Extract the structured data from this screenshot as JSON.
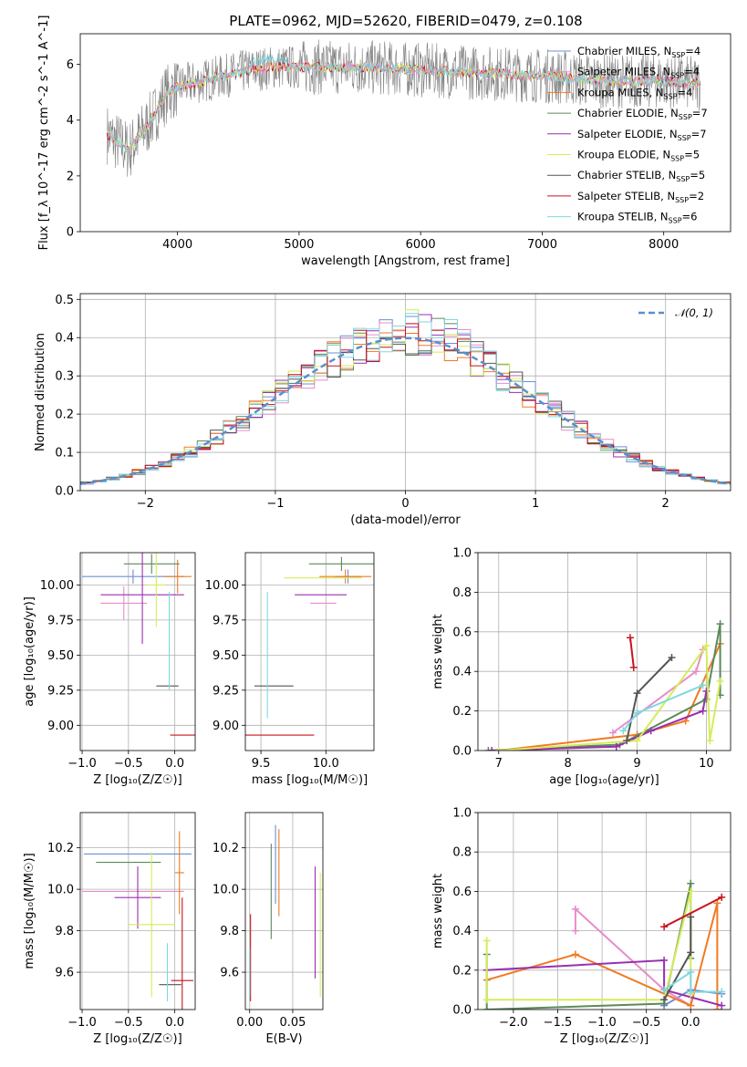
{
  "figure": {
    "title": "PLATE=0962, MJD=52620, FIBERID=0479, z=0.108"
  },
  "models": [
    {
      "name": "Chabrier MILES, N$_{SSP}$=4",
      "label": "Chabrier MILES, N",
      "n": "4",
      "color": "#6a8fd8"
    },
    {
      "name": "Salpeter MILES, N$_{SSP}$=4",
      "label": "Salpeter MILES, N",
      "n": "4",
      "color": "#e88cc9"
    },
    {
      "name": "Kroupa MILES, N$_{SSP}$=4",
      "label": "Kroupa MILES, N",
      "n": "4",
      "color": "#f07a22"
    },
    {
      "name": "Chabrier ELODIE, N$_{SSP}$=7",
      "label": "Chabrier ELODIE, N",
      "n": "7",
      "color": "#5b8a5b"
    },
    {
      "name": "Salpeter ELODIE, N$_{SSP}$=7",
      "label": "Salpeter ELODIE, N",
      "n": "7",
      "color": "#9a2fb0"
    },
    {
      "name": "Kroupa ELODIE, N$_{SSP}$=5",
      "label": "Kroupa ELODIE, N",
      "n": "5",
      "color": "#d5ec5a"
    },
    {
      "name": "Chabrier STELIB, N$_{SSP}$=5",
      "label": "Chabrier STELIB, N",
      "n": "5",
      "color": "#555555"
    },
    {
      "name": "Salpeter STELIB, N$_{SSP}$=2",
      "label": "Salpeter STELIB, N",
      "n": "2",
      "color": "#c8141e"
    },
    {
      "name": "Kroupa STELIB, N$_{SSP}$=6",
      "label": "Kroupa STELIB, N",
      "n": "6",
      "color": "#7fd8e0"
    }
  ],
  "chart_data": [
    {
      "id": "spectrum",
      "type": "line",
      "xlabel": "wavelength [Angstrom, rest frame]",
      "ylabel": "Flux [f_λ 10^-17 erg cm^-2 s^-1 A^-1]",
      "xlim": [
        3200,
        8550
      ],
      "ylim": [
        0,
        7.1
      ],
      "xticks": [
        4000,
        5000,
        6000,
        7000,
        8000
      ],
      "yticks": [
        0,
        2,
        4,
        6
      ],
      "data_range": [
        3420,
        8300
      ],
      "approx_continuum": {
        "x": [
          3420,
          3600,
          3700,
          3800,
          3900,
          4000,
          4200,
          4400,
          4600,
          4800,
          5000,
          5500,
          6000,
          6500,
          7000,
          7500,
          8000,
          8300
        ],
        "y": [
          3.5,
          2.9,
          3.5,
          4.1,
          4.9,
          5.2,
          5.4,
          5.6,
          5.8,
          5.9,
          5.9,
          5.9,
          5.8,
          5.7,
          5.6,
          5.4,
          5.4,
          5.3
        ]
      },
      "legend": "upper right",
      "grid": false
    },
    {
      "id": "residuals",
      "type": "line",
      "xlabel": "(data-model)/error",
      "ylabel": "Normed distribution",
      "xlim": [
        -2.5,
        2.5
      ],
      "ylim": [
        0,
        0.515
      ],
      "xticks": [
        -2,
        -1,
        0,
        1,
        2
      ],
      "yticks": [
        0,
        0.1,
        0.2,
        0.3,
        0.4,
        0.5
      ],
      "reference_label": "𝒩(0, 1)",
      "reference": {
        "mean": 0,
        "sigma": 1
      },
      "histogram_bin_width": 0.1,
      "legend": "upper right",
      "grid": true
    },
    {
      "id": "age_vs_Z",
      "type": "errorbar",
      "xlabel": "Z [log₁₀(Z/Z☉)]",
      "ylabel": "age  [log₁₀(age/yr)]",
      "xlim": [
        -1.02,
        0.22
      ],
      "ylim": [
        8.82,
        10.23
      ],
      "xticks": [
        -1.0,
        -0.5,
        0.0
      ],
      "yticks": [
        9.0,
        9.25,
        9.5,
        9.75,
        10.0
      ],
      "points": [
        {
          "model": 0,
          "x": -0.45,
          "xerr": 0.55,
          "y": 10.06,
          "yerr": 0.05
        },
        {
          "model": 1,
          "x": -0.55,
          "xerr": 0.25,
          "y": 9.87,
          "yerr": 0.12
        },
        {
          "model": 2,
          "x": 0.03,
          "xerr": 0.15,
          "y": 10.06,
          "yerr": 0.12
        },
        {
          "model": 3,
          "x": -0.25,
          "xerr": 0.3,
          "y": 10.15,
          "yerr": 0.07
        },
        {
          "model": 4,
          "x": -0.35,
          "xerr": 0.45,
          "y": 9.93,
          "yerr": 0.35
        },
        {
          "model": 5,
          "x": -0.2,
          "xerr": 0.1,
          "y": 10.0,
          "yerr": 0.3
        },
        {
          "model": 6,
          "x": -0.08,
          "xerr": 0.12,
          "y": 9.28,
          "yerr": 0.0
        },
        {
          "model": 7,
          "x": 0.1,
          "xerr": 0.15,
          "y": 8.93,
          "yerr": 0.0
        },
        {
          "model": 8,
          "x": -0.06,
          "xerr": 0.0,
          "y": 9.6,
          "yerr": 0.35
        }
      ]
    },
    {
      "id": "age_vs_mass",
      "type": "errorbar",
      "xlabel": "mass [log₁₀(M/M☉)]",
      "ylabel": "",
      "xlim": [
        9.38,
        10.37
      ],
      "ylim": [
        8.82,
        10.23
      ],
      "xticks": [
        9.5,
        10.0
      ],
      "yticks": [
        9.0,
        9.25,
        9.5,
        9.75,
        10.0
      ],
      "points": [
        {
          "model": 0,
          "x": 10.17,
          "xerr": 0.1,
          "y": 10.06,
          "yerr": 0.05
        },
        {
          "model": 1,
          "x": 9.98,
          "xerr": 0.1,
          "y": 9.87,
          "yerr": 0.0
        },
        {
          "model": 2,
          "x": 10.15,
          "xerr": 0.2,
          "y": 10.06,
          "yerr": 0.05
        },
        {
          "model": 3,
          "x": 10.12,
          "xerr": 0.25,
          "y": 10.15,
          "yerr": 0.05
        },
        {
          "model": 4,
          "x": 9.96,
          "xerr": 0.2,
          "y": 9.93,
          "yerr": 0.0
        },
        {
          "model": 5,
          "x": 9.98,
          "xerr": 0.3,
          "y": 10.05,
          "yerr": 0.0
        },
        {
          "model": 6,
          "x": 9.6,
          "xerr": 0.15,
          "y": 9.28,
          "yerr": 0.0
        },
        {
          "model": 7,
          "x": 9.58,
          "xerr": 0.33,
          "y": 8.93,
          "yerr": 0.0
        },
        {
          "model": 8,
          "x": 9.55,
          "xerr": 0.0,
          "y": 9.5,
          "yerr": 0.45
        }
      ]
    },
    {
      "id": "weight_vs_age",
      "type": "line",
      "xlabel": "age  [log₁₀(age/yr)]",
      "ylabel": "mass weight",
      "xlim": [
        6.7,
        10.35
      ],
      "ylim": [
        0,
        1.0
      ],
      "xticks": [
        7,
        8,
        9,
        10
      ],
      "yticks": [
        0.0,
        0.2,
        0.4,
        0.6,
        0.8,
        1.0
      ],
      "grid": true,
      "series": [
        {
          "model": 1,
          "x": [
            8.65,
            9.85,
            9.95
          ],
          "y": [
            0.09,
            0.4,
            0.51
          ]
        },
        {
          "model": 2,
          "x": [
            7.0,
            9.0,
            9.7,
            10.2
          ],
          "y": [
            0.0,
            0.08,
            0.15,
            0.54
          ]
        },
        {
          "model": 3,
          "x": [
            6.85,
            8.75,
            10.0,
            10.2,
            10.2
          ],
          "y": [
            0.0,
            0.03,
            0.26,
            0.64,
            0.28
          ]
        },
        {
          "model": 4,
          "x": [
            6.9,
            8.7,
            9.2,
            9.95,
            10.0
          ],
          "y": [
            0.0,
            0.02,
            0.1,
            0.2,
            0.3
          ]
        },
        {
          "model": 5,
          "x": [
            7.0,
            9.0,
            10.0,
            10.05,
            10.2
          ],
          "y": [
            0.0,
            0.05,
            0.53,
            0.05,
            0.35
          ]
        },
        {
          "model": 6,
          "x": [
            8.85,
            9.0,
            9.5
          ],
          "y": [
            0.05,
            0.29,
            0.47
          ]
        },
        {
          "model": 7,
          "x": [
            8.9,
            8.95
          ],
          "y": [
            0.57,
            0.42
          ]
        },
        {
          "model": 8,
          "x": [
            8.8,
            9.0,
            9.95
          ],
          "y": [
            0.1,
            0.19,
            0.33
          ]
        }
      ]
    },
    {
      "id": "mass_vs_Z",
      "type": "errorbar",
      "xlabel": "Z [log₁₀(Z/Z☉)]",
      "ylabel": "mass [log₁₀(M/M☉)]",
      "xlim": [
        -1.02,
        0.22
      ],
      "ylim": [
        9.42,
        10.37
      ],
      "xticks": [
        -1.0,
        -0.5,
        0.0
      ],
      "yticks": [
        9.6,
        9.8,
        10.0,
        10.2
      ],
      "points": [
        {
          "model": 0,
          "x": -0.4,
          "xerr": 0.58,
          "y": 10.17,
          "yerr": 0.0
        },
        {
          "model": 1,
          "x": -0.45,
          "xerr": 0.55,
          "y": 9.99,
          "yerr": 0.0
        },
        {
          "model": 2,
          "x": 0.05,
          "xerr": 0.05,
          "y": 10.08,
          "yerr": 0.2
        },
        {
          "model": 3,
          "x": -0.5,
          "xerr": 0.35,
          "y": 10.13,
          "yerr": 0.0
        },
        {
          "model": 4,
          "x": -0.4,
          "xerr": 0.25,
          "y": 9.96,
          "yerr": 0.15
        },
        {
          "model": 5,
          "x": -0.25,
          "xerr": 0.25,
          "y": 9.83,
          "yerr": 0.35
        },
        {
          "model": 6,
          "x": -0.05,
          "xerr": 0.12,
          "y": 9.54,
          "yerr": 0.0
        },
        {
          "model": 7,
          "x": 0.08,
          "xerr": 0.12,
          "y": 9.56,
          "yerr": 0.4
        },
        {
          "model": 8,
          "x": -0.08,
          "xerr": 0.0,
          "y": 9.6,
          "yerr": 0.14
        }
      ]
    },
    {
      "id": "mass_vs_EBV",
      "type": "errorbar",
      "xlabel": "E(B-V)",
      "ylabel": "",
      "xlim": [
        -0.005,
        0.085
      ],
      "ylim": [
        9.42,
        10.37
      ],
      "xticks": [
        0.0,
        0.05
      ],
      "yticks": [
        9.6,
        9.8,
        10.0,
        10.2
      ],
      "points": [
        {
          "model": 0,
          "x": 0.03,
          "xerr": 0.0,
          "y": 10.12,
          "yerr": 0.19
        },
        {
          "model": 2,
          "x": 0.034,
          "xerr": 0.0,
          "y": 10.08,
          "yerr": 0.21
        },
        {
          "model": 3,
          "x": 0.025,
          "xerr": 0.0,
          "y": 9.99,
          "yerr": 0.23
        },
        {
          "model": 4,
          "x": 0.076,
          "xerr": 0.0,
          "y": 9.84,
          "yerr": 0.27
        },
        {
          "model": 5,
          "x": 0.082,
          "xerr": 0.0,
          "y": 9.78,
          "yerr": 0.3
        },
        {
          "model": 7,
          "x": 0.001,
          "xerr": 0.0,
          "y": 9.67,
          "yerr": 0.21
        },
        {
          "model": 8,
          "x": 0.0,
          "xerr": 0.0,
          "y": 9.6,
          "yerr": 0.12
        }
      ]
    },
    {
      "id": "weight_vs_Z",
      "type": "line",
      "xlabel": "Z [log₁₀(Z/Z☉)]",
      "ylabel": "mass weight",
      "xlim": [
        -2.4,
        0.45
      ],
      "ylim": [
        0,
        1.0
      ],
      "xticks": [
        -2.0,
        -1.5,
        -1.0,
        -0.5,
        0.0
      ],
      "yticks": [
        0.0,
        0.2,
        0.4,
        0.6,
        0.8,
        1.0
      ],
      "grid": true,
      "series": [
        {
          "model": 0,
          "x": [
            -0.3,
            0.0,
            0.35
          ],
          "y": [
            0.02,
            0.1,
            0.08
          ]
        },
        {
          "model": 1,
          "x": [
            -1.3,
            -1.3,
            -0.3,
            0.0
          ],
          "y": [
            0.4,
            0.51,
            0.1,
            0.02
          ]
        },
        {
          "model": 2,
          "x": [
            -2.3,
            -1.3,
            0.0,
            0.3,
            0.3
          ],
          "y": [
            0.15,
            0.28,
            0.02,
            0.54,
            0.0
          ]
        },
        {
          "model": 3,
          "x": [
            -2.3,
            -2.3,
            -0.3,
            0.0,
            0.0
          ],
          "y": [
            0.28,
            0.0,
            0.03,
            0.64,
            0.26
          ]
        },
        {
          "model": 4,
          "x": [
            -2.3,
            -0.3,
            -0.3,
            0.35
          ],
          "y": [
            0.2,
            0.25,
            0.1,
            0.02
          ]
        },
        {
          "model": 5,
          "x": [
            -2.3,
            -2.3,
            -0.3,
            0.0,
            0.0
          ],
          "y": [
            0.35,
            0.05,
            0.05,
            0.6,
            0.08
          ]
        },
        {
          "model": 6,
          "x": [
            -0.3,
            0.0,
            0.0
          ],
          "y": [
            0.05,
            0.29,
            0.47
          ]
        },
        {
          "model": 7,
          "x": [
            -0.3,
            0.35
          ],
          "y": [
            0.42,
            0.57
          ]
        },
        {
          "model": 8,
          "x": [
            -0.3,
            0.0,
            0.0,
            0.35
          ],
          "y": [
            0.1,
            0.19,
            0.09,
            0.09
          ]
        }
      ]
    }
  ]
}
